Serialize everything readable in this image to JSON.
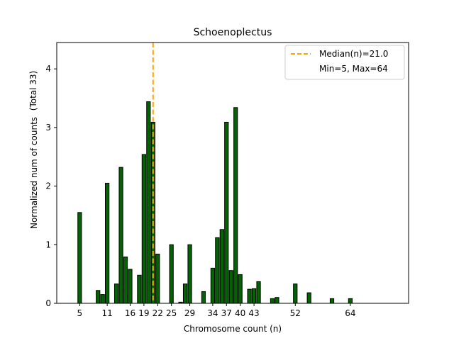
{
  "chart_data": {
    "type": "bar",
    "title": "Schoenoplectus",
    "xlabel": "Chromosome count (n)",
    "ylabel": "Normalized num of counts",
    "ylabel2": "(Total 33)",
    "xlim": [
      0,
      76.7
    ],
    "ylim": [
      0,
      4.45
    ],
    "xticks": [
      5,
      11,
      16,
      19,
      22,
      25,
      29,
      34,
      37,
      40,
      43,
      52,
      64
    ],
    "yticks": [
      0,
      1,
      2,
      3,
      4
    ],
    "x": [
      5,
      9,
      10,
      11,
      13,
      14,
      15,
      16,
      18,
      19,
      20,
      21,
      22,
      25,
      27,
      28,
      29,
      32,
      34,
      35,
      36,
      37,
      38,
      39,
      40,
      42,
      43,
      44,
      47,
      48,
      52,
      55,
      60,
      64
    ],
    "values": [
      1.55,
      0.22,
      0.15,
      2.05,
      0.33,
      2.32,
      0.79,
      0.58,
      0.48,
      2.54,
      3.44,
      3.09,
      0.84,
      1.0,
      0.02,
      0.33,
      1.0,
      0.2,
      0.6,
      1.12,
      1.26,
      3.09,
      0.56,
      3.34,
      0.49,
      0.24,
      0.25,
      0.37,
      0.08,
      0.1,
      0.33,
      0.18,
      0.08,
      0.08
    ],
    "bar_color": "#006400",
    "median": 21.0,
    "median_color": "#FFA500",
    "legend": {
      "placement": "top-right",
      "entries": [
        "Median(n)=21.0",
        "Min=5, Max=64"
      ]
    }
  }
}
